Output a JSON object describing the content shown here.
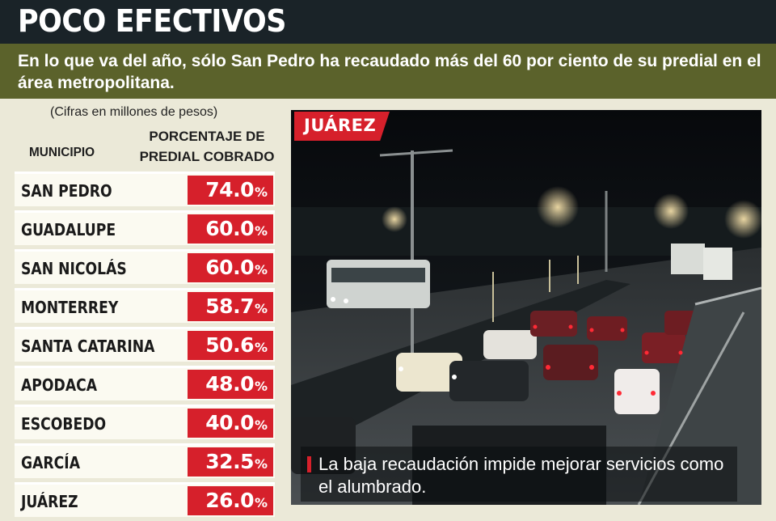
{
  "header": {
    "title": "POCO EFECTIVOS",
    "subtitle": "En lo que va del año, sólo San Pedro ha recaudado más del 60 por ciento de su predial en el área metropolitana."
  },
  "table": {
    "note": "(Cifras en millones de pesos)",
    "col_municipio": "MUNICIPIO",
    "col_pct_line1": "PORCENTAJE DE",
    "col_pct_line2": "PREDIAL COBRADO",
    "unit": "%"
  },
  "photo": {
    "tag": "JUÁREZ",
    "caption": "La baja recaudación impide mejorar servicios como el alumbrado."
  },
  "colors": {
    "accent_red": "#d6202b",
    "title_bg": "#1a2328",
    "subtitle_bg": "#5b622b",
    "page_bg": "#ebe9d8"
  },
  "chart_data": {
    "type": "table",
    "title": "POCO EFECTIVOS",
    "columns": [
      "MUNICIPIO",
      "PORCENTAJE DE PREDIAL COBRADO"
    ],
    "rows": [
      {
        "municipio": "SAN PEDRO",
        "value": "74.0"
      },
      {
        "municipio": "GUADALUPE",
        "value": "60.0"
      },
      {
        "municipio": "SAN NICOLÁS",
        "value": "60.0"
      },
      {
        "municipio": "MONTERREY",
        "value": "58.7"
      },
      {
        "municipio": "SANTA CATARINA",
        "value": "50.6"
      },
      {
        "municipio": "APODACA",
        "value": "48.0"
      },
      {
        "municipio": "ESCOBEDO",
        "value": "40.0"
      },
      {
        "municipio": "GARCÍA",
        "value": "32.5"
      },
      {
        "municipio": "JUÁREZ",
        "value": "26.0"
      }
    ]
  }
}
